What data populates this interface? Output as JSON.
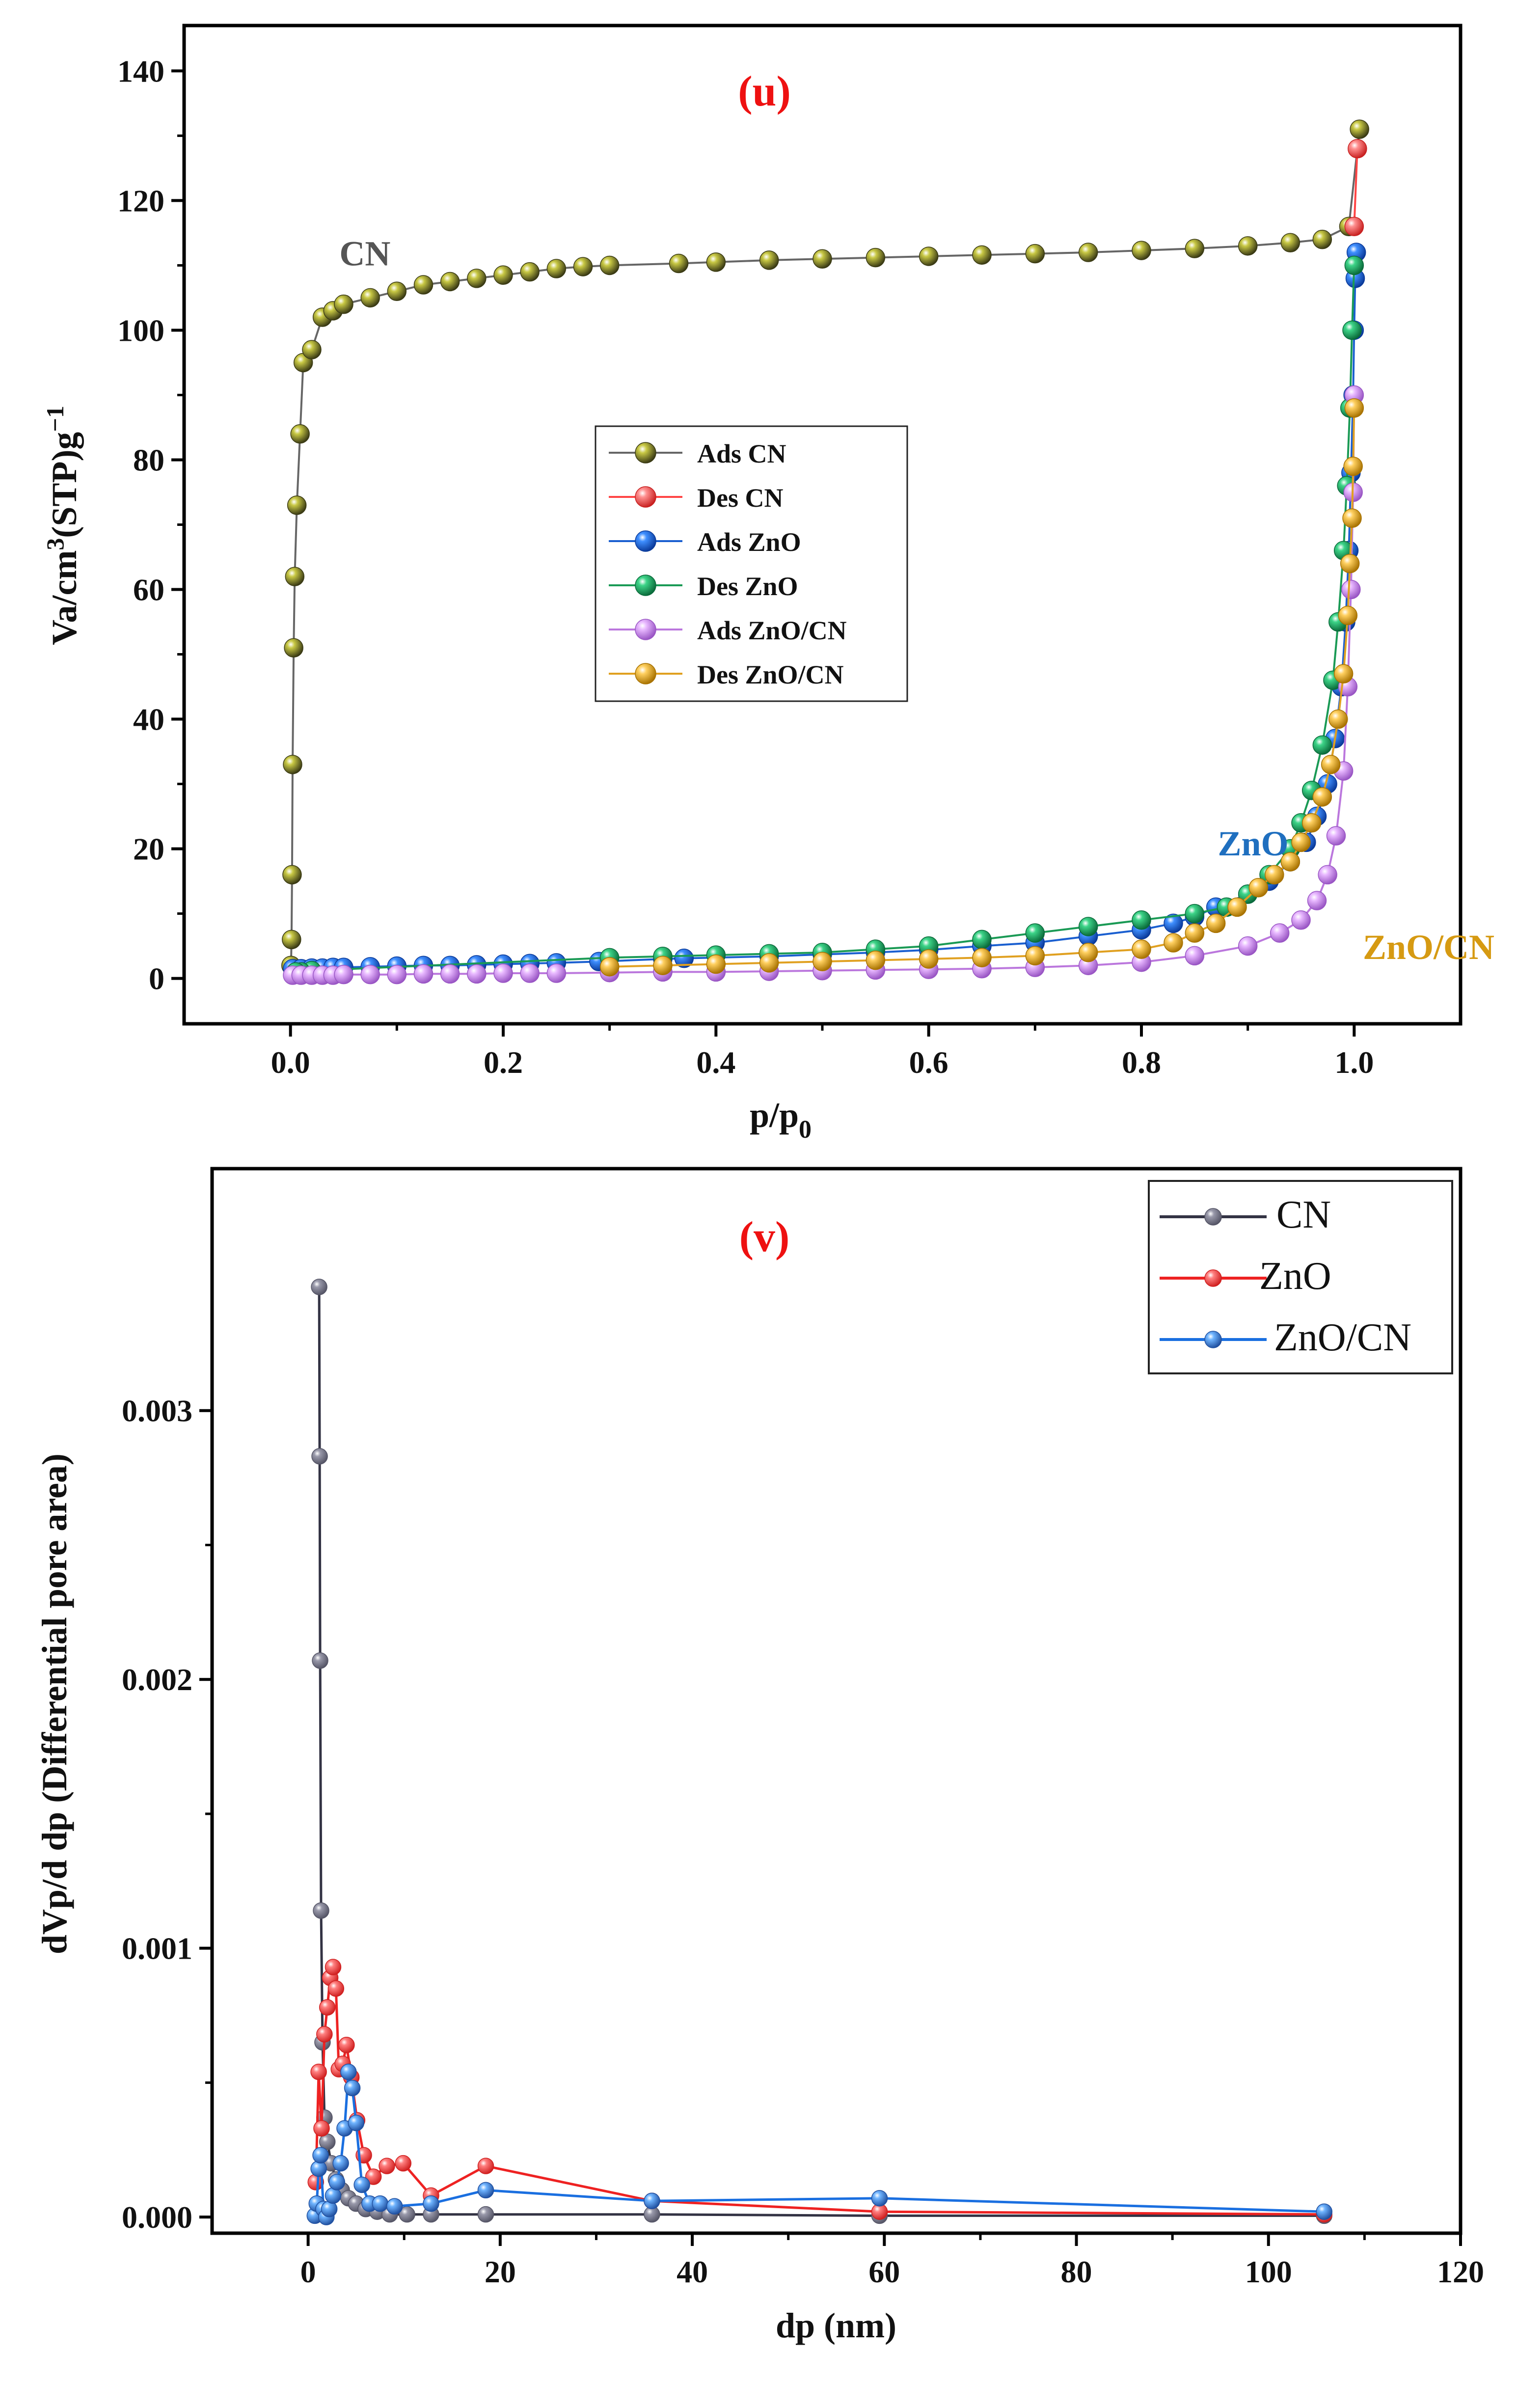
{
  "chart_data": [
    {
      "id": "u",
      "type": "line",
      "panel_label": "(u)",
      "xlabel": "p/p",
      "xlabel_sub": "0",
      "ylabel_parts": [
        "Va/cm",
        "3",
        "(STP)g",
        "−1"
      ],
      "xlim": [
        -0.1,
        1.1
      ],
      "ylim": [
        -7,
        147
      ],
      "xticks": [
        0.0,
        0.2,
        0.4,
        0.6,
        0.8,
        1.0
      ],
      "xtick_labels": [
        "0.0",
        "0.2",
        "0.4",
        "0.6",
        "0.8",
        "1.0"
      ],
      "yticks": [
        0,
        20,
        40,
        60,
        80,
        100,
        120,
        140
      ],
      "ytick_labels": [
        "0",
        "20",
        "40",
        "60",
        "80",
        "100",
        "120",
        "140"
      ],
      "legend_position": "center-left",
      "annotations": [
        {
          "text": "CN",
          "x": 0.07,
          "y": 110,
          "color": "#555555"
        },
        {
          "text": "ZnO",
          "x": 0.905,
          "y": 19,
          "color": "#1f6fbf"
        },
        {
          "text": "ZnO/CN",
          "x": 1.07,
          "y": 3,
          "color": "#d69a12"
        }
      ],
      "series": [
        {
          "name": "Ads CN",
          "line": "#666666",
          "marker": "#3a3a14",
          "hl": "#c8c844",
          "x": [
            0.0005,
            0.001,
            0.0015,
            0.002,
            0.003,
            0.004,
            0.006,
            0.009,
            0.012,
            0.02,
            0.03,
            0.04,
            0.05,
            0.075,
            0.1,
            0.125,
            0.15,
            0.175,
            0.2,
            0.225,
            0.25,
            0.275,
            0.3,
            0.365,
            0.4,
            0.45,
            0.5,
            0.55,
            0.6,
            0.65,
            0.7,
            0.75,
            0.8,
            0.85,
            0.9,
            0.94,
            0.97,
            0.995,
            1.005
          ],
          "y": [
            2,
            6,
            16,
            33,
            51,
            62,
            73,
            84,
            95,
            97,
            102,
            103,
            104,
            105,
            106,
            107,
            107.5,
            108,
            108.5,
            109,
            109.5,
            109.8,
            110,
            110.3,
            110.5,
            110.8,
            111,
            111.2,
            111.4,
            111.6,
            111.8,
            112,
            112.3,
            112.6,
            113,
            113.5,
            114,
            116,
            131
          ]
        },
        {
          "name": "Des CN",
          "line": "#ff4444",
          "marker": "#c82020",
          "hl": "#ff9090",
          "x": [
            1.0,
            1.003
          ],
          "y": [
            116,
            128
          ]
        },
        {
          "name": "Ads ZnO",
          "line": "#1a5fd0",
          "marker": "#0a3a9a",
          "hl": "#3f8fff",
          "x": [
            0.002,
            0.01,
            0.02,
            0.03,
            0.04,
            0.05,
            0.075,
            0.1,
            0.125,
            0.15,
            0.175,
            0.2,
            0.225,
            0.25,
            0.29,
            0.35,
            0.37,
            0.45,
            0.5,
            0.55,
            0.6,
            0.65,
            0.7,
            0.75,
            0.8,
            0.83,
            0.85,
            0.87,
            0.9,
            0.92,
            0.94,
            0.955,
            0.965,
            0.975,
            0.982,
            0.988,
            0.992,
            0.995,
            0.997,
            0.999,
            1.0,
            1.001,
            1.002
          ],
          "y": [
            1.5,
            1.5,
            1.6,
            1.6,
            1.7,
            1.7,
            1.8,
            1.9,
            2,
            2,
            2.1,
            2.2,
            2.3,
            2.4,
            2.6,
            3,
            3.1,
            3.4,
            3.7,
            4,
            4.4,
            5,
            5.5,
            6.5,
            7.5,
            8.5,
            9.5,
            11,
            13,
            15,
            18,
            21,
            25,
            30,
            37,
            45,
            55,
            66,
            78,
            90,
            100,
            108,
            112
          ]
        },
        {
          "name": "Des ZnO",
          "line": "#1a9a55",
          "marker": "#0a6a3a",
          "hl": "#3dd488",
          "x": [
            1.0,
            0.998,
            0.996,
            0.993,
            0.99,
            0.985,
            0.98,
            0.97,
            0.96,
            0.95,
            0.94,
            0.92,
            0.9,
            0.88,
            0.85,
            0.8,
            0.75,
            0.7,
            0.65,
            0.6,
            0.55,
            0.5,
            0.45,
            0.4,
            0.35,
            0.3,
            0.02,
            0.01,
            0.005
          ],
          "y": [
            110,
            100,
            88,
            76,
            66,
            55,
            46,
            36,
            29,
            24,
            20,
            16,
            13,
            11,
            10,
            9,
            8,
            7,
            6,
            5,
            4.5,
            4,
            3.8,
            3.6,
            3.4,
            3.2,
            1.2,
            1,
            1
          ]
        },
        {
          "name": "Ads ZnO/CN",
          "line": "#bb77dd",
          "marker": "#9955c4",
          "hl": "#e8b8ff",
          "x": [
            0.002,
            0.01,
            0.02,
            0.03,
            0.04,
            0.05,
            0.075,
            0.1,
            0.125,
            0.15,
            0.175,
            0.2,
            0.225,
            0.25,
            0.3,
            0.35,
            0.4,
            0.45,
            0.5,
            0.55,
            0.6,
            0.65,
            0.7,
            0.75,
            0.8,
            0.85,
            0.9,
            0.93,
            0.95,
            0.965,
            0.975,
            0.983,
            0.99,
            0.994,
            0.997,
            0.999,
            1.0
          ],
          "y": [
            0.5,
            0.5,
            0.5,
            0.5,
            0.5,
            0.6,
            0.6,
            0.6,
            0.7,
            0.7,
            0.7,
            0.8,
            0.8,
            0.8,
            0.9,
            1,
            1,
            1.1,
            1.2,
            1.3,
            1.4,
            1.5,
            1.7,
            2,
            2.5,
            3.5,
            5,
            7,
            9,
            12,
            16,
            22,
            32,
            45,
            60,
            75,
            90
          ]
        },
        {
          "name": "Des ZnO/CN",
          "line": "#e0a020",
          "marker": "#a87200",
          "hl": "#ffd060",
          "x": [
            1.0,
            0.999,
            0.998,
            0.996,
            0.994,
            0.99,
            0.985,
            0.978,
            0.97,
            0.96,
            0.95,
            0.94,
            0.925,
            0.91,
            0.89,
            0.87,
            0.85,
            0.83,
            0.8,
            0.75,
            0.7,
            0.65,
            0.6,
            0.55,
            0.5,
            0.45,
            0.4,
            0.35,
            0.3
          ],
          "y": [
            88,
            79,
            71,
            64,
            56,
            47,
            40,
            33,
            28,
            24,
            21,
            18,
            16,
            14,
            11,
            8.5,
            7,
            5.5,
            4.5,
            4,
            3.5,
            3.2,
            3,
            2.8,
            2.6,
            2.4,
            2.2,
            2,
            1.8
          ]
        }
      ]
    },
    {
      "id": "v",
      "type": "line",
      "panel_label": "(v)",
      "xlabel": "dp (nm)",
      "ylabel": "dVp/d dp (Differential pore area)",
      "xlim": [
        -10,
        120
      ],
      "ylim": [
        -6e-05,
        0.0039
      ],
      "xticks": [
        0,
        20,
        40,
        60,
        80,
        100,
        120
      ],
      "xtick_labels": [
        "0",
        "20",
        "40",
        "60",
        "80",
        "100",
        "120"
      ],
      "yticks": [
        0.0,
        0.001,
        0.002,
        0.003
      ],
      "ytick_labels": [
        "0.000",
        "0.001",
        "0.002",
        "0.003"
      ],
      "legend_position": "top-right",
      "series": [
        {
          "name": "CN",
          "line": "#333344",
          "marker": "#555566",
          "hl": "#9999aa",
          "x": [
            1.15,
            1.2,
            1.25,
            1.35,
            1.5,
            1.7,
            2.0,
            2.4,
            2.9,
            3.5,
            4.2,
            5.0,
            6.0,
            7.2,
            8.5,
            10.3,
            12.8,
            18.5,
            35.8,
            59.5,
            105.8
          ],
          "y": [
            0.00346,
            0.00283,
            0.00207,
            0.00114,
            0.00065,
            0.00037,
            0.00028,
            0.0002,
            0.00014,
            0.0001,
            7e-05,
            5e-05,
            3e-05,
            2e-05,
            1e-05,
            1e-05,
            1e-05,
            1e-05,
            1e-05,
            5e-06,
            5e-06
          ]
        },
        {
          "name": "ZnO",
          "line": "#ee2222",
          "marker": "#d02020",
          "hl": "#ff8080",
          "x": [
            0.8,
            1.1,
            1.4,
            1.7,
            2.0,
            2.3,
            2.6,
            2.9,
            3.2,
            3.6,
            4.0,
            4.5,
            5.1,
            5.8,
            6.8,
            8.2,
            9.9,
            12.8,
            18.5,
            35.8,
            59.5,
            105.8
          ],
          "y": [
            0.00013,
            0.00054,
            0.00033,
            0.00068,
            0.00078,
            0.00089,
            0.00093,
            0.00085,
            0.00055,
            0.00057,
            0.00064,
            0.00052,
            0.00036,
            0.00023,
            0.00015,
            0.00019,
            0.0002,
            8e-05,
            0.00019,
            6e-05,
            2e-05,
            1e-05
          ]
        },
        {
          "name": "ZnO/CN",
          "line": "#1a6fe0",
          "marker": "#2050a0",
          "hl": "#6fb4ff",
          "x": [
            0.7,
            0.9,
            1.1,
            1.3,
            1.6,
            1.9,
            2.2,
            2.6,
            3.0,
            3.4,
            3.8,
            4.2,
            4.6,
            5.0,
            5.6,
            6.4,
            7.5,
            9.0,
            12.8,
            18.5,
            35.8,
            59.5,
            105.8
          ],
          "y": [
            5e-06,
            5e-05,
            0.00018,
            0.00023,
            3e-05,
            0.0,
            3e-05,
            8e-05,
            0.00013,
            0.0002,
            0.00033,
            0.00054,
            0.00048,
            0.00035,
            0.00012,
            5e-05,
            5e-05,
            4e-05,
            5e-05,
            0.0001,
            6e-05,
            7e-05,
            2e-05
          ]
        }
      ]
    }
  ]
}
